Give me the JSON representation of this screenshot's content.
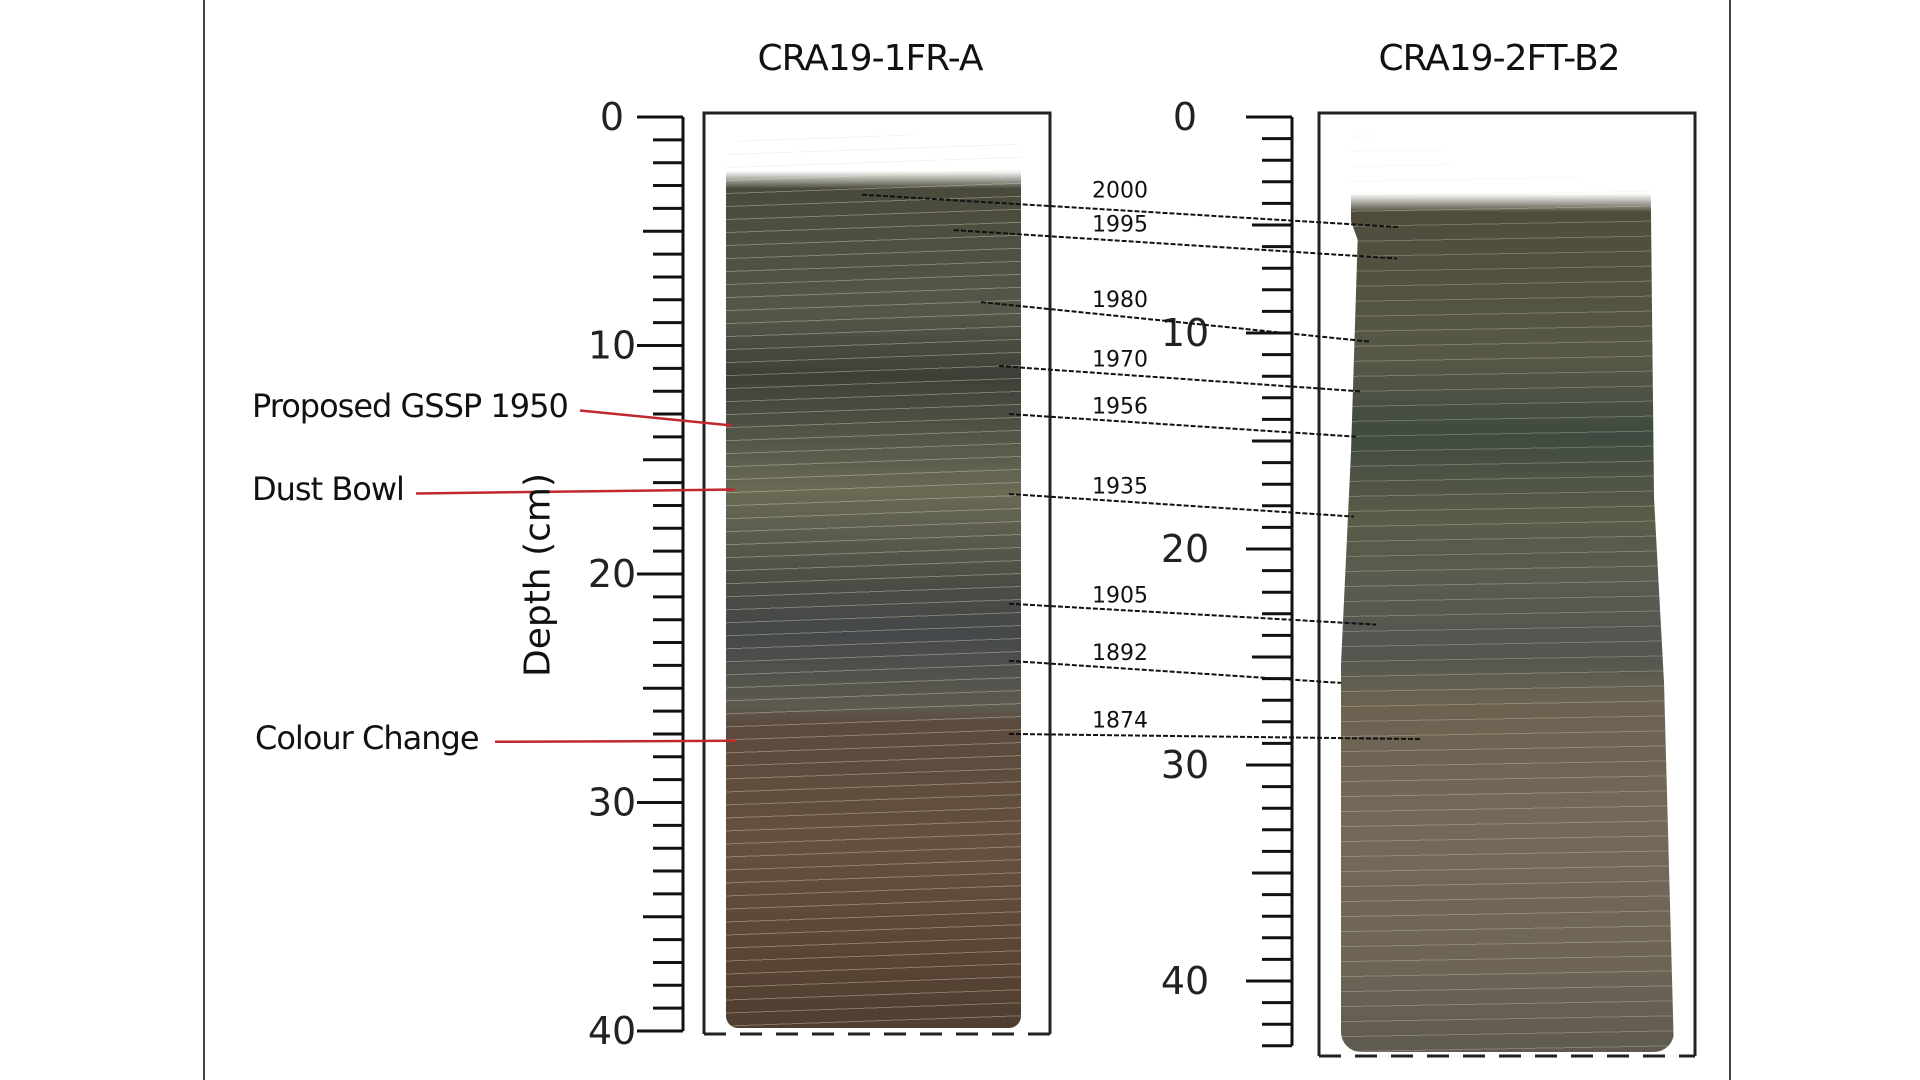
{
  "cores": [
    {
      "title": "CRA19-1FR-A",
      "scale_max": 40
    },
    {
      "title": "CRA19-2FT-B2",
      "scale_max": 43
    }
  ],
  "scale": {
    "left_tick_labels": [
      "0",
      "10",
      "20",
      "30",
      "40"
    ],
    "right_tick_labels": [
      "0",
      "10",
      "20",
      "30",
      "40"
    ]
  },
  "axis_label": "Depth (cm)",
  "annotations": [
    {
      "label": "Proposed GSSP 1950",
      "depth_cm": 13.5
    },
    {
      "label": "Dust Bowl",
      "depth_cm": 16.3
    },
    {
      "label": "Colour Change",
      "depth_cm": 27.3
    }
  ],
  "annotation_color": "#c0282d",
  "correlations": [
    {
      "year": "2000",
      "depth_core1_cm": 3.4,
      "depth_core2_cm": 5.1
    },
    {
      "year": "1995",
      "depth_core1_cm": 4.95,
      "depth_core2_cm": 6.55
    },
    {
      "year": "1980",
      "depth_core1_cm": 8.1,
      "depth_core2_cm": 10.4
    },
    {
      "year": "1970",
      "depth_core1_cm": 10.9,
      "depth_core2_cm": 12.7
    },
    {
      "year": "1956",
      "depth_core1_cm": 13.0,
      "depth_core2_cm": 14.8
    },
    {
      "year": "1935",
      "depth_core1_cm": 16.5,
      "depth_core2_cm": 18.5
    },
    {
      "year": "1905",
      "depth_core1_cm": 21.3,
      "depth_core2_cm": 23.5
    },
    {
      "year": "1892",
      "depth_core1_cm": 23.8,
      "depth_core2_cm": 26.2
    },
    {
      "year": "1874",
      "depth_core1_cm": 27.0,
      "depth_core2_cm": 28.8
    }
  ]
}
